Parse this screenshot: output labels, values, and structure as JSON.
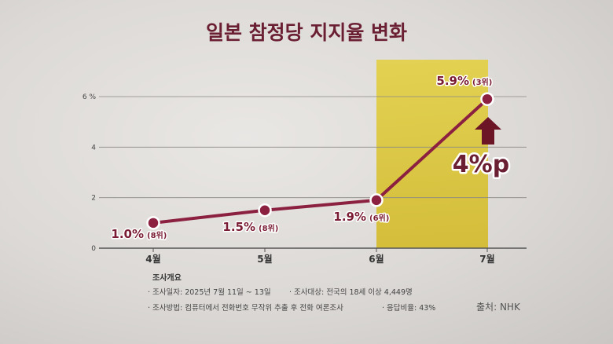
{
  "chart_data": {
    "type": "line",
    "title": "일본 참정당 지지율 변화",
    "categories": [
      "4월",
      "5월",
      "6월",
      "7월"
    ],
    "series": [
      {
        "values": [
          1.0,
          1.5,
          1.9,
          5.9
        ]
      }
    ],
    "data_labels": [
      "1.0%",
      "1.5%",
      "1.9%",
      "5.9%"
    ],
    "rank_labels": [
      "(8위)",
      "(8위)",
      "(6위)",
      "(3위)"
    ],
    "ylim": [
      0,
      6
    ],
    "yticks": [
      {
        "value": 0,
        "label": "0"
      },
      {
        "value": 2,
        "label": "2"
      },
      {
        "value": 4,
        "label": "4"
      },
      {
        "value": 6,
        "label": "6 %"
      }
    ],
    "grid": true,
    "highlight_category": "7월",
    "change_annotation": "4%p",
    "colors": {
      "line": "#8b2040",
      "highlight": "#ddc62c",
      "title": "#6b1f33",
      "label": "#7a1c33"
    }
  },
  "survey": {
    "heading": "조사개요",
    "items": [
      "· 조사일자: 2025년 7월 11일 ~ 13일",
      "· 조사대상: 전국의 18세 이상 4,449명",
      "· 조사방법: 컴퓨터에서 전화번호 무작위 추출 후 전화 여론조사",
      "· 응답비율: 43%"
    ]
  },
  "source": "출처: NHK"
}
